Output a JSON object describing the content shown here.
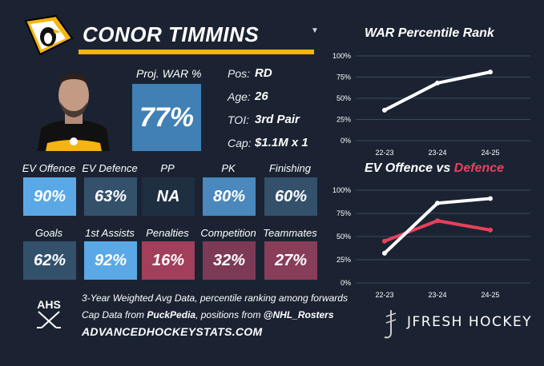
{
  "player": {
    "name": "CONOR TIMMINS",
    "proj_war_label": "Proj. WAR %",
    "proj_war_value": "77%",
    "info": [
      {
        "key": "Pos:",
        "value": "RD"
      },
      {
        "key": "Age:",
        "value": "26"
      },
      {
        "key": "TOI:",
        "value": "3rd Pair"
      },
      {
        "key": "Cap:",
        "value": "$1.1M x 1"
      }
    ]
  },
  "colors": {
    "background": "#1b2332",
    "accent_yellow": "#f5b50d",
    "high_blue": "#5aa9e6",
    "mid_blue": "#4080b5",
    "neutral": "#2c4157",
    "dark_neutral": "#1e2f42",
    "low_red": "#a23f5b",
    "low_mauve": "#7d3a56",
    "defence_red": "#e8415b"
  },
  "tiles_row1": [
    {
      "label": "EV Offence",
      "value": "90%",
      "color": "#5aa9e6"
    },
    {
      "label": "EV Defence",
      "value": "63%",
      "color": "#34516c"
    },
    {
      "label": "PP",
      "value": "NA",
      "color": "#1e2f42"
    },
    {
      "label": "PK",
      "value": "80%",
      "color": "#4a88bd"
    },
    {
      "label": "Finishing",
      "value": "60%",
      "color": "#34516c"
    }
  ],
  "tiles_row2": [
    {
      "label": "Goals",
      "value": "62%",
      "color": "#34516c"
    },
    {
      "label": "1st Assists",
      "value": "92%",
      "color": "#5aa9e6"
    },
    {
      "label": "Penalties",
      "value": "16%",
      "color": "#a23f5b"
    },
    {
      "label": "Competition",
      "value": "32%",
      "color": "#7d3a56"
    },
    {
      "label": "Teammates",
      "value": "27%",
      "color": "#883d58"
    }
  ],
  "footer": {
    "line1": "3-Year Weighted Avg Data, percentile ranking among forwards",
    "line2_pre": "Cap Data from ",
    "line2_src1": "PuckPedia",
    "line2_mid": ", positions from ",
    "line2_src2": "@NHL_Rosters",
    "site": "ADVANCEDHOCKEYSTATS.COM",
    "ahs_logo_text": "AHS",
    "brand": "JFRESH HOCKEY"
  },
  "icons": {
    "team_logo": "penguins-logo-icon",
    "ahs_logo": "hockey-sticks-icon",
    "brand_logo": "jfresh-icon",
    "dropdown": "triangle-down-icon"
  },
  "chart_data": [
    {
      "type": "line",
      "title": "WAR Percentile Rank",
      "x": [
        "22-23",
        "23-24",
        "24-25"
      ],
      "series": [
        {
          "values": [
            36,
            68,
            81
          ],
          "color": "#ffffff"
        }
      ],
      "ylim": [
        0,
        100
      ],
      "yticks": [
        "0%",
        "25%",
        "50%",
        "75%",
        "100%"
      ],
      "grid": true
    },
    {
      "type": "line",
      "title_part1": "EV Offence vs ",
      "title_part2": "Defence",
      "x": [
        "22-23",
        "23-24",
        "24-25"
      ],
      "series": [
        {
          "name": "EV Offence",
          "values": [
            32,
            86,
            91
          ],
          "color": "#ffffff"
        },
        {
          "name": "Defence",
          "values": [
            45,
            67,
            57
          ],
          "color": "#e8415b"
        }
      ],
      "ylim": [
        0,
        100
      ],
      "yticks": [
        "0%",
        "25%",
        "50%",
        "75%",
        "100%"
      ],
      "grid": true
    }
  ]
}
